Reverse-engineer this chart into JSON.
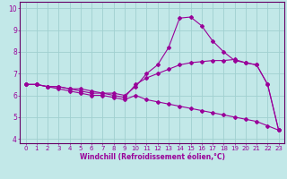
{
  "xlabel": "Windchill (Refroidissement éolien,°C)",
  "bg_color": "#c2e8e8",
  "grid_color": "#a0d0d0",
  "line_color": "#990099",
  "xlim": [
    -0.5,
    23.5
  ],
  "ylim": [
    3.8,
    10.3
  ],
  "xticks": [
    0,
    1,
    2,
    3,
    4,
    5,
    6,
    7,
    8,
    9,
    10,
    11,
    12,
    13,
    14,
    15,
    16,
    17,
    18,
    19,
    20,
    21,
    22,
    23
  ],
  "yticks": [
    4,
    5,
    6,
    7,
    8,
    9,
    10
  ],
  "curve1_x": [
    0,
    1,
    2,
    3,
    4,
    5,
    6,
    7,
    8,
    9,
    10,
    11,
    12,
    13,
    14,
    15,
    16,
    17,
    18,
    19,
    20,
    21,
    22,
    23
  ],
  "curve1_y": [
    6.5,
    6.5,
    6.4,
    6.4,
    6.3,
    6.3,
    6.2,
    6.1,
    6.1,
    6.0,
    6.4,
    7.0,
    7.4,
    8.2,
    9.55,
    9.6,
    9.2,
    8.5,
    8.0,
    7.6,
    7.5,
    7.4,
    6.5,
    4.4
  ],
  "curve2_x": [
    0,
    1,
    2,
    3,
    4,
    5,
    6,
    7,
    8,
    9,
    10,
    11,
    12,
    13,
    14,
    15,
    16,
    17,
    18,
    19,
    20,
    21,
    22,
    23
  ],
  "curve2_y": [
    6.5,
    6.5,
    6.4,
    6.4,
    6.3,
    6.2,
    6.1,
    6.1,
    6.0,
    5.9,
    6.5,
    6.8,
    7.0,
    7.2,
    7.4,
    7.5,
    7.55,
    7.6,
    7.6,
    7.65,
    7.5,
    7.4,
    6.5,
    4.4
  ],
  "curve3_x": [
    0,
    1,
    2,
    3,
    4,
    5,
    6,
    7,
    8,
    9,
    10,
    11,
    12,
    13,
    14,
    15,
    16,
    17,
    18,
    19,
    20,
    21,
    22,
    23
  ],
  "curve3_y": [
    6.5,
    6.5,
    6.4,
    6.3,
    6.2,
    6.1,
    6.0,
    6.0,
    5.9,
    5.8,
    6.0,
    5.8,
    5.7,
    5.6,
    5.5,
    5.4,
    5.3,
    5.2,
    5.1,
    5.0,
    4.9,
    4.8,
    4.6,
    4.4
  ],
  "tick_fontsize": 5.0,
  "xlabel_fontsize": 5.5,
  "marker_size": 2.0,
  "line_width": 0.8
}
